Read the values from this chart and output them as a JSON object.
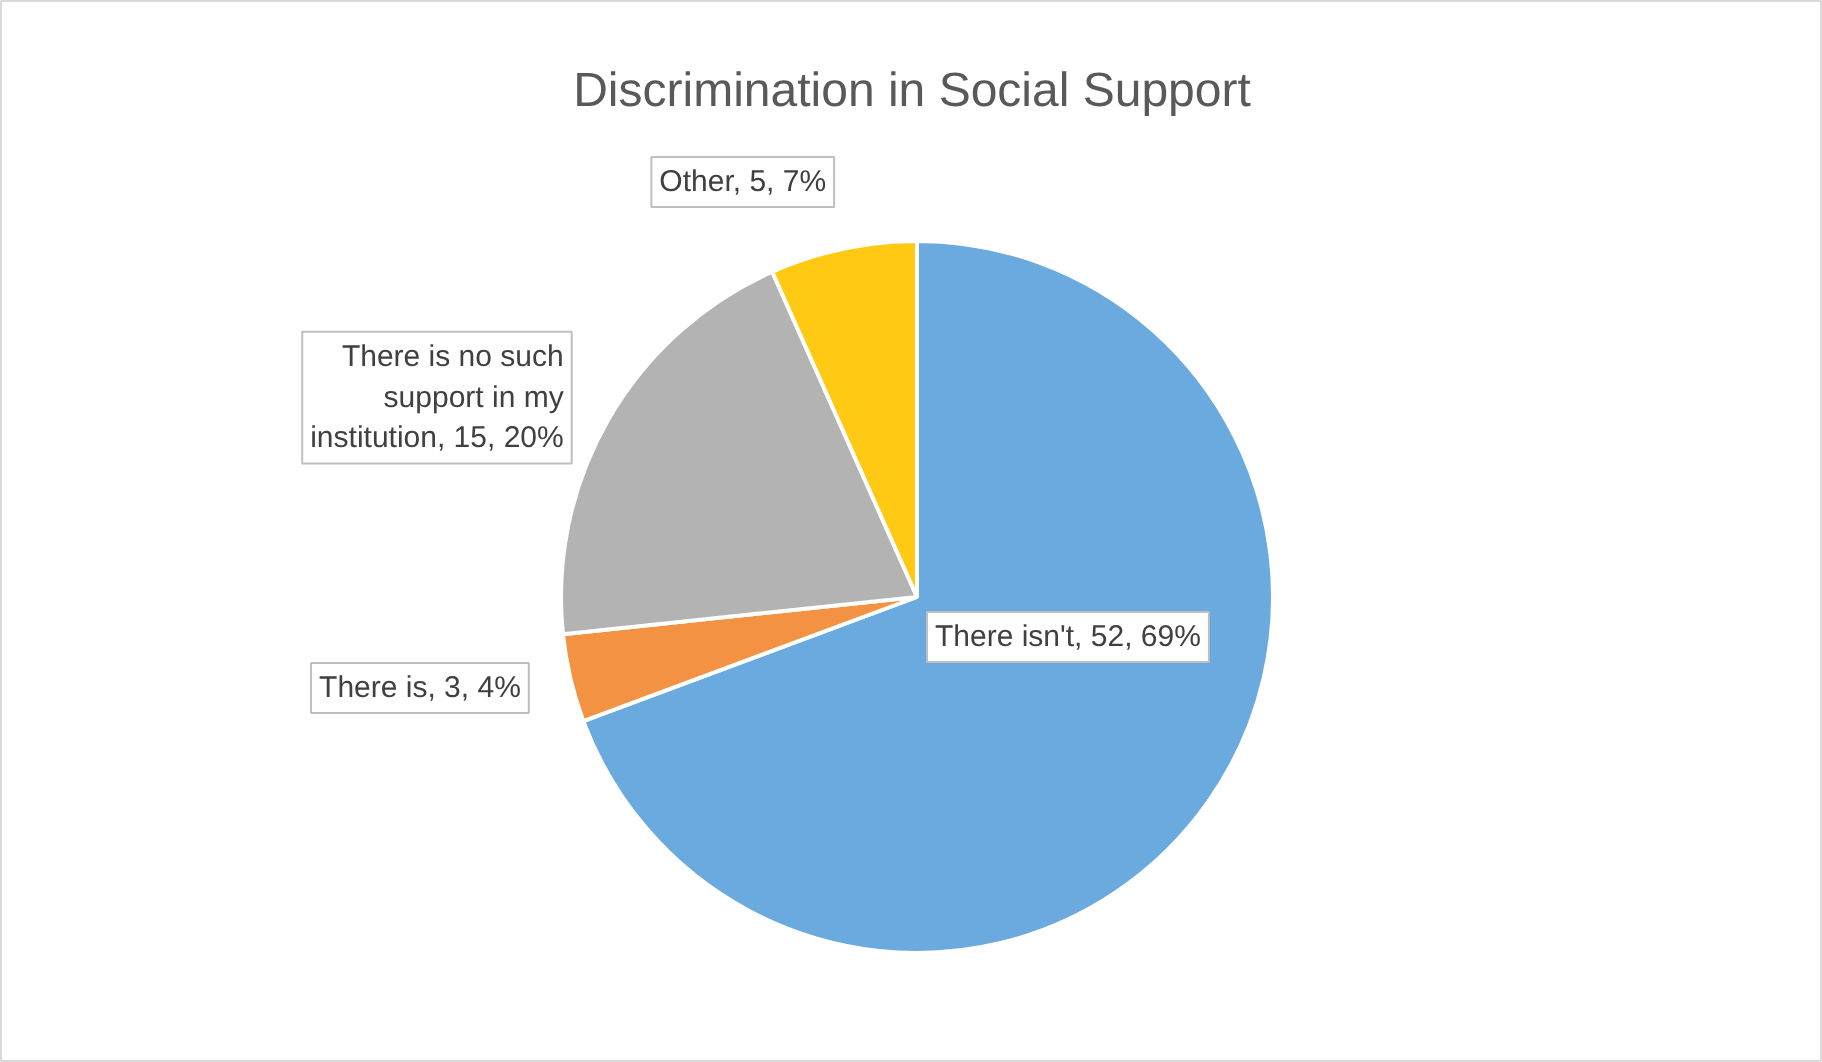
{
  "chart_data": {
    "type": "pie",
    "title": "Discrimination in Social Support",
    "categories": [
      "There isn't",
      "There is",
      "There is no such support in my institution",
      "Other"
    ],
    "values": [
      52,
      3,
      15,
      5
    ],
    "value_labels": [
      "52, 69%",
      "3, 4%",
      "15, 20%",
      "5, 7%"
    ],
    "colors": [
      "#6aaade",
      "#f39242",
      "#b3b3b3",
      "#ffc914"
    ],
    "legend": false
  }
}
